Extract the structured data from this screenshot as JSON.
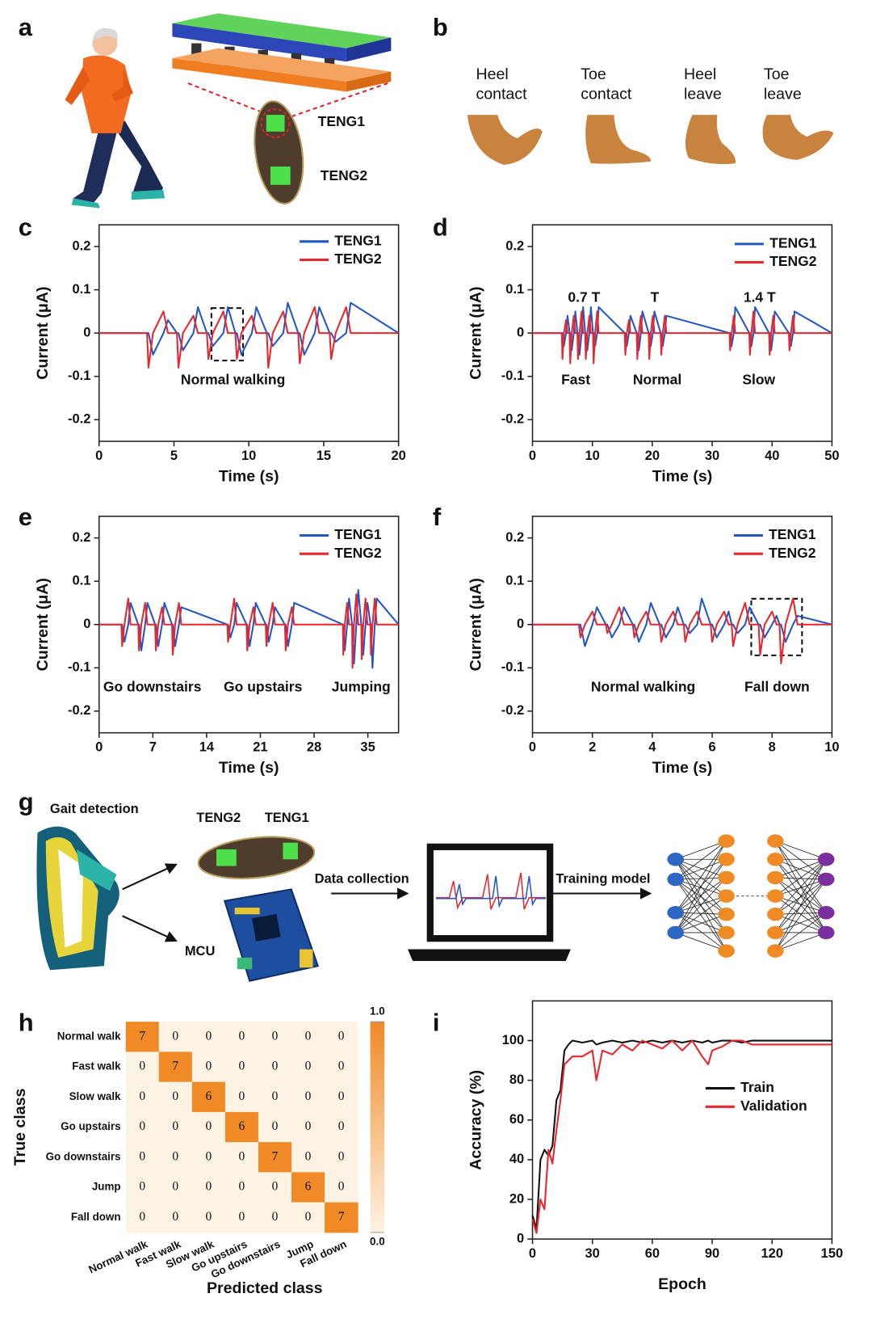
{
  "panels": {
    "labels": [
      "a",
      "b",
      "c",
      "d",
      "e",
      "f",
      "g",
      "h",
      "i"
    ]
  },
  "panel_a": {
    "labels": [
      "TENG1",
      "TENG2"
    ]
  },
  "panel_b": {
    "phases": [
      [
        "Heel",
        "contact"
      ],
      [
        "Toe",
        "contact"
      ],
      [
        "Heel",
        "leave"
      ],
      [
        "Toe",
        "leave"
      ]
    ]
  },
  "panel_g": {
    "title": "Gait detection",
    "sensors": [
      "TENG2",
      "TENG1"
    ],
    "mcu": "MCU",
    "steps": [
      "Data collection",
      "Training model"
    ]
  },
  "chart_data": [
    {
      "type": "line",
      "xlabel": "Time (s)",
      "ylabel": "Current (μA)",
      "xlim": [
        0,
        20
      ],
      "xticks": [
        0,
        5,
        10,
        15,
        20
      ],
      "ylim": [
        -0.25,
        0.25
      ],
      "yticks": [
        0.2,
        0.1,
        0,
        -0.1,
        -0.2
      ],
      "annotations": [
        "Normal walking"
      ],
      "legend": "upper right",
      "x": [
        0,
        3.2,
        3.3,
        3.6,
        4.3,
        4.6,
        5.2,
        5.3,
        5.6,
        6.3,
        6.6,
        7.2,
        7.3,
        7.6,
        8.3,
        8.6,
        9.1,
        9.2,
        9.5,
        10.2,
        10.5,
        11.2,
        11.3,
        11.6,
        12.3,
        12.6,
        13.3,
        13.4,
        13.7,
        14.4,
        14.7,
        15.4,
        15.5,
        15.8,
        16.5,
        16.8,
        20
      ],
      "series": [
        {
          "name": "TENG1",
          "color": "#2456c4",
          "values": [
            0,
            0,
            0,
            -0.05,
            0,
            0.03,
            0,
            0,
            -0.04,
            0,
            0.06,
            0,
            0,
            -0.03,
            0,
            0.06,
            0,
            0,
            -0.05,
            0,
            0.06,
            0,
            0,
            -0.03,
            0,
            0.07,
            0,
            0,
            -0.05,
            0,
            0.06,
            0,
            0,
            -0.02,
            0,
            0.07,
            0
          ]
        },
        {
          "name": "TENG2",
          "color": "#e8262d",
          "values": [
            0,
            0,
            -0.08,
            0,
            0.05,
            0,
            0,
            -0.08,
            0,
            0.04,
            0,
            0,
            -0.06,
            0,
            0.05,
            0,
            0,
            -0.06,
            0,
            0.04,
            0,
            0,
            -0.08,
            0,
            0.05,
            0,
            0,
            -0.07,
            0,
            0.06,
            0,
            0,
            -0.06,
            0,
            0.06,
            0,
            0
          ]
        }
      ]
    },
    {
      "type": "line",
      "xlabel": "Time (s)",
      "ylabel": "Current (μA)",
      "xlim": [
        0,
        50
      ],
      "xticks": [
        0,
        10,
        20,
        30,
        40,
        50
      ],
      "ylim": [
        -0.25,
        0.25
      ],
      "yticks": [
        0.2,
        0.1,
        0,
        -0.1,
        -0.2
      ],
      "annotations": [
        "0.7 T",
        "T",
        "1.4 T",
        "Fast",
        "Normal",
        "Slow"
      ],
      "legend": "upper right",
      "x": [
        0,
        4.9,
        5,
        5.25,
        5.6,
        5.85,
        6.2,
        6.3,
        6.55,
        6.9,
        7.15,
        7.5,
        7.6,
        7.85,
        8.2,
        8.45,
        8.8,
        8.9,
        9.15,
        9.5,
        9.75,
        10.1,
        10.2,
        10.45,
        10.8,
        11.05,
        15.4,
        15.5,
        15.75,
        16.1,
        16.35,
        17.4,
        17.5,
        17.75,
        18.1,
        18.35,
        19.4,
        19.5,
        19.75,
        20.1,
        20.35,
        21.4,
        21.5,
        21.75,
        22.1,
        22.35,
        32.9,
        33,
        33.25,
        33.6,
        33.85,
        36.2,
        36.3,
        36.55,
        36.9,
        37.15,
        39.5,
        39.6,
        39.85,
        40.2,
        40.45,
        42.8,
        42.9,
        43.15,
        43.5,
        43.75,
        50
      ],
      "series": [
        {
          "name": "TENG1",
          "color": "#2456c4",
          "values": [
            0,
            0,
            0,
            -0.03,
            0,
            0.04,
            0,
            0,
            -0.04,
            0,
            0.05,
            0,
            0,
            -0.05,
            0,
            0.06,
            0,
            0,
            -0.04,
            0,
            0.06,
            0,
            0,
            -0.03,
            0,
            0.06,
            0,
            0,
            -0.03,
            0,
            0.04,
            0,
            0,
            -0.04,
            0,
            0.05,
            0,
            0,
            -0.03,
            0,
            0.05,
            0,
            0,
            -0.03,
            0,
            0.04,
            0,
            0,
            -0.03,
            0,
            0.06,
            0,
            0,
            -0.03,
            0,
            0.06,
            0,
            0,
            -0.04,
            0,
            0.05,
            0,
            0,
            -0.03,
            0,
            0.05,
            0
          ]
        },
        {
          "name": "TENG2",
          "color": "#e8262d",
          "values": [
            0,
            0,
            -0.06,
            0,
            0.03,
            0,
            0,
            -0.07,
            0,
            0.04,
            0,
            0,
            -0.06,
            0,
            0.05,
            0,
            0,
            -0.06,
            0,
            0.04,
            0,
            0,
            -0.07,
            0,
            0.05,
            0,
            0,
            -0.05,
            0,
            0.03,
            0,
            0,
            -0.06,
            0,
            0.04,
            0,
            0,
            -0.06,
            0,
            0.04,
            0,
            0,
            -0.05,
            0,
            0.04,
            0,
            0,
            -0.04,
            0,
            0.04,
            0,
            0,
            -0.05,
            0,
            0.05,
            0,
            0,
            -0.05,
            0,
            0.04,
            0,
            0,
            -0.04,
            0,
            0.04,
            0,
            0
          ]
        }
      ]
    },
    {
      "type": "line",
      "xlabel": "Time (s)",
      "ylabel": "Current (μA)",
      "xlim": [
        0,
        39
      ],
      "xticks": [
        0,
        7,
        14,
        21,
        28,
        35
      ],
      "ylim": [
        -0.25,
        0.25
      ],
      "yticks": [
        0.2,
        0.1,
        0,
        -0.1,
        -0.2
      ],
      "annotations": [
        "Go downstairs",
        "Go upstairs",
        "Jumping"
      ],
      "legend": "upper right",
      "x": [
        0,
        2.9,
        3,
        3.3,
        3.8,
        4.1,
        5.1,
        5.2,
        5.5,
        6,
        6.3,
        7.3,
        7.4,
        7.7,
        8.2,
        8.5,
        9.5,
        9.6,
        9.9,
        10.4,
        10.7,
        16.7,
        16.8,
        17.1,
        17.6,
        17.9,
        19.2,
        19.3,
        19.6,
        20.1,
        20.4,
        21.7,
        21.8,
        22.1,
        22.6,
        22.9,
        24.2,
        24.3,
        24.6,
        25.1,
        25.4,
        31.75,
        31.8,
        32,
        32.3,
        32.55,
        32.95,
        33,
        33.2,
        33.5,
        33.75,
        34.15,
        34.2,
        34.4,
        34.7,
        34.95,
        35.35,
        35.4,
        35.6,
        35.9,
        36.15,
        39
      ],
      "series": [
        {
          "name": "TENG1",
          "color": "#2456c4",
          "values": [
            0,
            0,
            0,
            -0.04,
            0,
            0.05,
            0,
            0,
            -0.06,
            0,
            0.05,
            0,
            0,
            -0.05,
            0,
            0.05,
            0,
            0,
            -0.05,
            0,
            0.04,
            0,
            0,
            -0.03,
            0,
            0.05,
            0,
            0,
            -0.05,
            0,
            0.05,
            0,
            0,
            -0.04,
            0,
            0.04,
            0,
            0,
            -0.05,
            0,
            0.05,
            0,
            0,
            -0.06,
            0,
            0.06,
            0,
            0,
            -0.09,
            0,
            0.08,
            0,
            0,
            -0.07,
            0,
            0.05,
            0,
            0,
            -0.1,
            0,
            0.06,
            0
          ]
        },
        {
          "name": "TENG2",
          "color": "#e8262d",
          "values": [
            0,
            0,
            -0.05,
            0,
            0.06,
            0,
            0,
            -0.06,
            0,
            0.05,
            0,
            0,
            -0.06,
            0,
            0.04,
            0,
            0,
            -0.07,
            0,
            0.05,
            0,
            0,
            -0.04,
            0,
            0.06,
            0,
            0,
            -0.06,
            0,
            0.04,
            0,
            0,
            -0.05,
            0,
            0.05,
            0,
            0,
            -0.06,
            0,
            0.04,
            0,
            0,
            -0.07,
            0,
            0.05,
            0,
            0,
            -0.1,
            0,
            0.07,
            0,
            0,
            -0.08,
            0,
            0.06,
            0,
            0,
            -0.07,
            0,
            0.06,
            0,
            0
          ]
        }
      ]
    },
    {
      "type": "line",
      "xlabel": "Time (s)",
      "ylabel": "Current (μA)",
      "xlim": [
        0,
        10
      ],
      "xticks": [
        0,
        2,
        4,
        6,
        8,
        10
      ],
      "ylim": [
        -0.25,
        0.25
      ],
      "yticks": [
        0.2,
        0.1,
        0,
        -0.1,
        -0.2
      ],
      "annotations": [
        "Normal walking",
        "Fall down"
      ],
      "legend": "upper right",
      "x": [
        0,
        1.55,
        1.6,
        1.75,
        2,
        2.15,
        2.45,
        2.5,
        2.65,
        2.9,
        3.05,
        3.35,
        3.4,
        3.55,
        3.8,
        3.95,
        4.25,
        4.3,
        4.45,
        4.7,
        4.85,
        5.05,
        5.1,
        5.25,
        5.5,
        5.65,
        5.95,
        6,
        6.15,
        6.4,
        6.55,
        6.65,
        6.7,
        6.85,
        7.1,
        7.25,
        7.55,
        7.6,
        7.75,
        8,
        8.15,
        8.25,
        8.3,
        8.45,
        8.7,
        8.85,
        10
      ],
      "series": [
        {
          "name": "TENG1",
          "color": "#2456c4",
          "values": [
            0,
            0,
            0,
            -0.05,
            0,
            0.04,
            0,
            0,
            -0.03,
            0,
            0.04,
            0,
            0,
            -0.04,
            0,
            0.05,
            0,
            0,
            -0.03,
            0,
            0.04,
            0,
            0,
            -0.02,
            0,
            0.06,
            0,
            0,
            -0.03,
            0,
            0.03,
            0,
            0,
            -0.02,
            0,
            0.04,
            0,
            0,
            -0.03,
            0,
            0.02,
            0,
            0,
            -0.04,
            0,
            0.02,
            0
          ]
        },
        {
          "name": "TENG2",
          "color": "#e8262d",
          "values": [
            0,
            0,
            -0.03,
            0,
            0.03,
            0,
            0,
            -0.02,
            0,
            0.04,
            0,
            0,
            -0.03,
            0,
            0.03,
            0,
            0,
            -0.04,
            0,
            0.03,
            0,
            0,
            -0.04,
            0,
            0.03,
            0,
            0,
            -0.04,
            0,
            0.03,
            0,
            0,
            -0.05,
            0,
            0.05,
            0,
            0,
            -0.07,
            0,
            0.03,
            0,
            0,
            -0.09,
            0,
            0.06,
            0,
            0
          ]
        }
      ]
    },
    {
      "type": "heatmap",
      "xlabel": "Predicted class",
      "ylabel": "True class",
      "x_categories": [
        "Normal walk",
        "Fast walk",
        "Slow walk",
        "Go upstairs",
        "Go downstairs",
        "Jump",
        "Fall down"
      ],
      "y_categories": [
        "Normal walk",
        "Fast walk",
        "Slow walk",
        "Go upstairs",
        "Go downstairs",
        "Jump",
        "Fall down"
      ],
      "values": [
        [
          7,
          0,
          0,
          0,
          0,
          0,
          0
        ],
        [
          0,
          7,
          0,
          0,
          0,
          0,
          0
        ],
        [
          0,
          0,
          6,
          0,
          0,
          0,
          0
        ],
        [
          0,
          0,
          0,
          6,
          0,
          0,
          0
        ],
        [
          0,
          0,
          0,
          0,
          7,
          0,
          0
        ],
        [
          0,
          0,
          0,
          0,
          0,
          6,
          0
        ],
        [
          0,
          0,
          0,
          0,
          0,
          0,
          7
        ]
      ],
      "zlim": [
        0,
        1
      ],
      "zticks": [
        {
          "value": 1,
          "label": "1.0"
        },
        {
          "value": 0,
          "label": "0.0"
        }
      ],
      "colors": [
        "#fdf3e4",
        "#ef8a26"
      ]
    },
    {
      "type": "line",
      "xlabel": "Epoch",
      "ylabel": "Accuracy (%)",
      "xlim": [
        0,
        150
      ],
      "xticks": [
        0,
        30,
        60,
        90,
        120,
        150
      ],
      "ylim": [
        0,
        120
      ],
      "yticks": [
        0,
        20,
        40,
        60,
        80,
        100
      ],
      "legend": "center right",
      "x": [
        0,
        2,
        4,
        6,
        8,
        10,
        12,
        14,
        16,
        18,
        20,
        25,
        30,
        32,
        35,
        40,
        45,
        50,
        55,
        60,
        65,
        70,
        75,
        80,
        85,
        88,
        90,
        95,
        100,
        105,
        110,
        120,
        130,
        140,
        150
      ],
      "series": [
        {
          "name": "Train",
          "color": "#111111",
          "values": [
            12,
            5,
            40,
            45,
            42,
            47,
            70,
            75,
            95,
            98,
            100,
            99,
            100,
            98,
            99,
            100,
            99,
            100,
            99,
            100,
            99,
            100,
            99,
            100,
            99,
            100,
            99,
            100,
            100,
            99,
            100,
            100,
            100,
            100,
            100
          ]
        },
        {
          "name": "Validation",
          "color": "#e8262d",
          "values": [
            10,
            3,
            20,
            15,
            45,
            38,
            55,
            70,
            88,
            90,
            92,
            92,
            95,
            80,
            95,
            93,
            98,
            95,
            100,
            98,
            96,
            100,
            95,
            100,
            92,
            88,
            95,
            97,
            100,
            100,
            98,
            98,
            98,
            98,
            98
          ]
        }
      ]
    }
  ]
}
